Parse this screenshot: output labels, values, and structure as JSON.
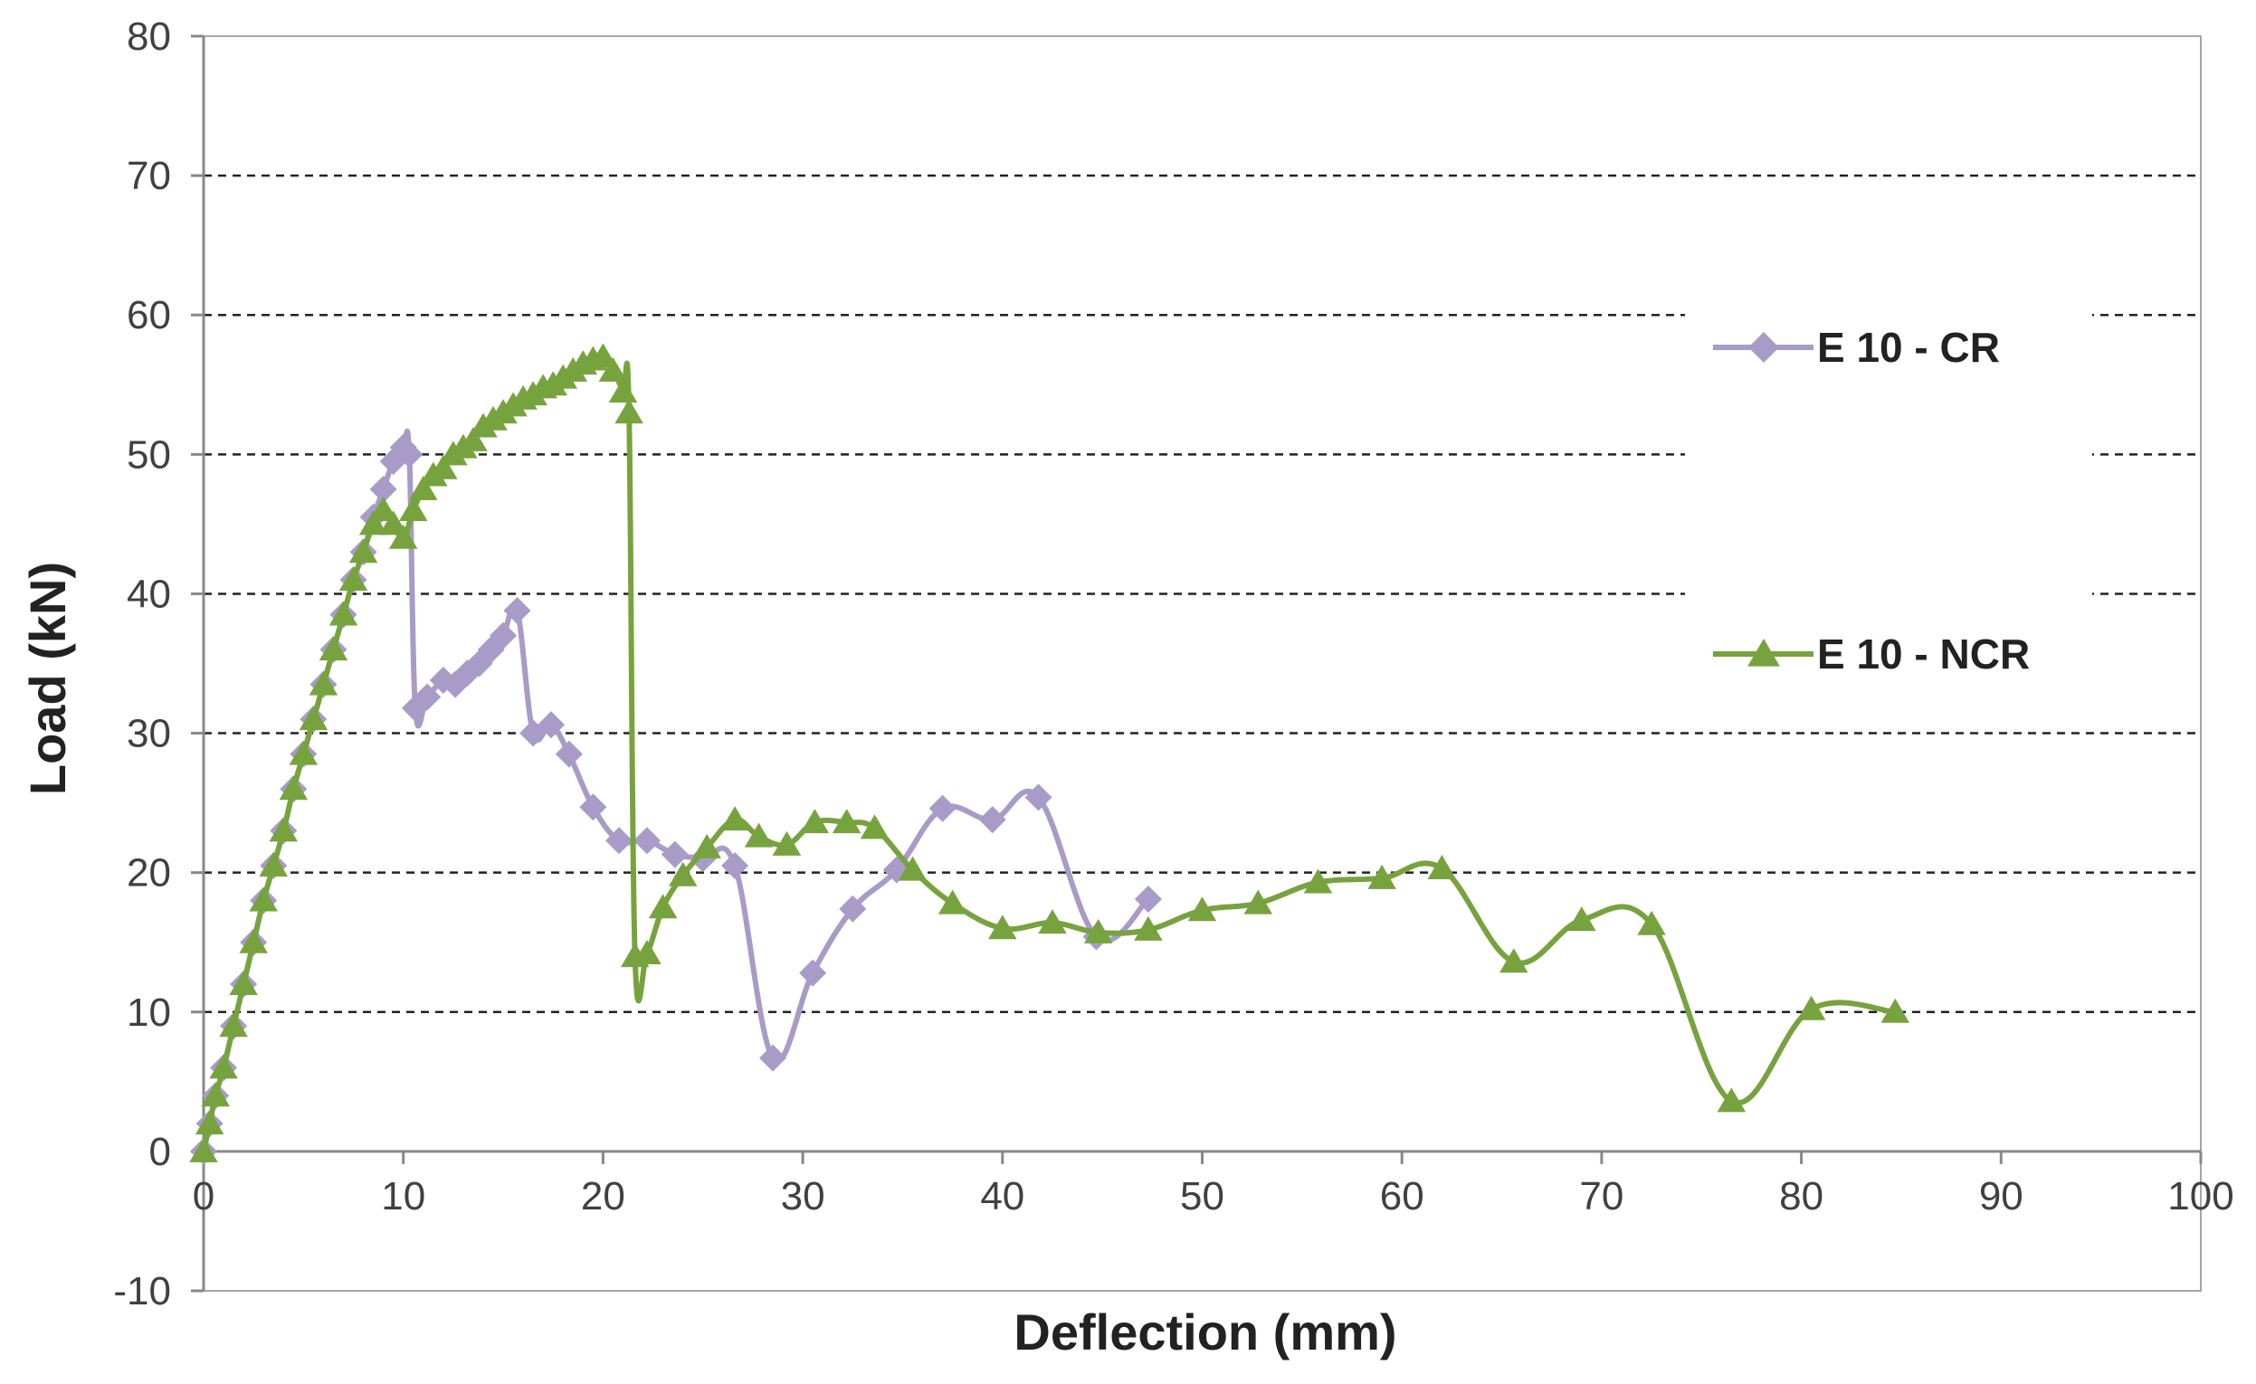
{
  "chart_data": {
    "type": "line",
    "title": "",
    "xlabel": "Deflection (mm)",
    "ylabel": "Load (kN)",
    "xlim": [
      0,
      100
    ],
    "ylim": [
      -10,
      80
    ],
    "xticks": [
      0,
      10,
      20,
      30,
      40,
      50,
      60,
      70,
      80,
      90,
      100
    ],
    "yticks": [
      -10,
      0,
      10,
      20,
      30,
      40,
      50,
      60,
      70,
      80
    ],
    "grid": "horizontal-dashed",
    "legend_position": "right",
    "series": [
      {
        "name": "E 10 - CR",
        "color": "#a89bc8",
        "marker": "diamond",
        "x": [
          0,
          0.3,
          0.6,
          1,
          1.5,
          2,
          2.5,
          3,
          3.5,
          4,
          4.5,
          5,
          5.5,
          6,
          6.5,
          7,
          7.5,
          8,
          8.5,
          9,
          9.5,
          10,
          10.3,
          10.6,
          11.2,
          12,
          12.6,
          13.2,
          13.8,
          14.4,
          15,
          15.7,
          16.5,
          17.4,
          18.3,
          19.5,
          20.8,
          22.2,
          23.6,
          25,
          26.6,
          28.5,
          30.5,
          32.5,
          34.7,
          37,
          39.5,
          41.8,
          44.7,
          47.3
        ],
        "y": [
          0,
          2,
          4,
          6,
          9,
          12,
          15,
          18,
          20.5,
          23,
          26,
          28.5,
          31,
          33.5,
          36,
          38.5,
          41,
          43,
          45.5,
          47.5,
          49.5,
          50.5,
          50,
          31.8,
          32.6,
          33.8,
          33.5,
          34.3,
          35,
          36,
          37,
          38.8,
          30,
          30.6,
          28.5,
          24.7,
          22.3,
          22.3,
          21.3,
          21,
          20.5,
          6.7,
          12.8,
          17.4,
          20.2,
          24.6,
          23.8,
          25.4,
          15.4,
          18.1
        ]
      },
      {
        "name": "E 10 - NCR",
        "color": "#77a33e",
        "marker": "triangle",
        "x": [
          0,
          0.3,
          0.6,
          1,
          1.5,
          2,
          2.5,
          3,
          3.5,
          4,
          4.5,
          5,
          5.5,
          6,
          6.5,
          7,
          7.5,
          8,
          8.5,
          9,
          9.5,
          10,
          10.5,
          11,
          11.5,
          12,
          12.5,
          13,
          13.5,
          14,
          14.5,
          15,
          15.5,
          16,
          16.5,
          17,
          17.5,
          18,
          18.5,
          19,
          19.5,
          20,
          20.5,
          21,
          21.3,
          21.6,
          22.2,
          23,
          24,
          25.2,
          26.6,
          27.8,
          29.2,
          30.6,
          32.2,
          33.6,
          35.5,
          37.5,
          40,
          42.5,
          44.8,
          47.3,
          50,
          52.8,
          55.8,
          59,
          62,
          65.6,
          69,
          72.5,
          76.5,
          80.5,
          84.7
        ],
        "y": [
          0,
          2,
          4,
          6,
          9,
          12,
          15,
          18,
          20.5,
          23,
          26,
          28.5,
          31,
          33.5,
          36,
          38.5,
          41,
          43,
          45,
          46,
          45,
          44,
          46,
          47.5,
          48.5,
          49,
          50,
          50.5,
          51,
          52,
          52.5,
          53,
          53.5,
          54,
          54.3,
          54.8,
          55,
          55.5,
          56,
          56.5,
          56.8,
          57,
          56,
          54.5,
          53,
          14,
          14.2,
          17.5,
          19.8,
          21.8,
          23.8,
          22.6,
          22,
          23.6,
          23.6,
          23.2,
          20.2,
          17.8,
          16,
          16.4,
          15.7,
          15.9,
          17.3,
          17.8,
          19.3,
          19.6,
          20.3,
          13.6,
          16.6,
          16.3,
          3.6,
          10.2,
          10
        ]
      }
    ]
  }
}
